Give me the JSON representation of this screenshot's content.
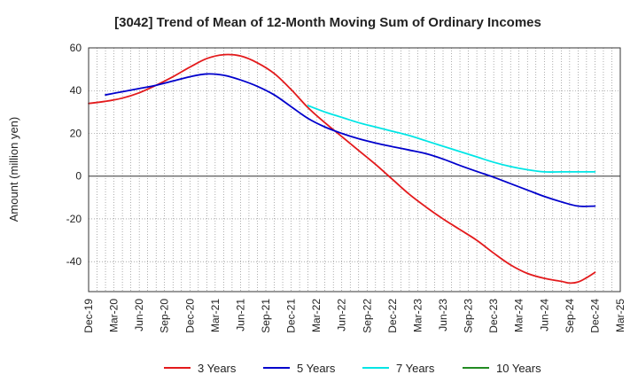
{
  "chart_data": {
    "type": "line",
    "title": "[3042]  Trend of Mean of 12-Month Moving Sum of Ordinary Incomes",
    "xlabel": "",
    "ylabel": "Amount (million yen)",
    "ylim": [
      -54,
      60
    ],
    "yticks": [
      60,
      40,
      20,
      0,
      -20,
      -40
    ],
    "grid": true,
    "legend_position": "bottom",
    "x_tick_labels": [
      "Dec-19",
      "Mar-20",
      "Jun-20",
      "Sep-20",
      "Dec-20",
      "Mar-21",
      "Jun-21",
      "Sep-21",
      "Dec-21",
      "Mar-22",
      "Jun-22",
      "Sep-22",
      "Dec-22",
      "Mar-23",
      "Jun-23",
      "Sep-23",
      "Dec-23",
      "Mar-24",
      "Jun-24",
      "Sep-24",
      "Dec-24",
      "Mar-25"
    ],
    "x_range_months": [
      0,
      63
    ],
    "series": [
      {
        "name": "3 Years",
        "color": "#e31a1c",
        "x": [
          0,
          2,
          4,
          6,
          8,
          10,
          12,
          14,
          16,
          18,
          20,
          22,
          24,
          26,
          28,
          30,
          32,
          34,
          36,
          38,
          40,
          42,
          44,
          46,
          48,
          50,
          52,
          54,
          56,
          57,
          58,
          59,
          60
        ],
        "values": [
          34,
          35,
          36.5,
          39,
          42.5,
          46.5,
          51,
          55,
          56.8,
          56.2,
          53,
          48,
          40.5,
          32,
          25,
          18.5,
          12,
          5.5,
          -1.5,
          -8.5,
          -14.5,
          -20,
          -25,
          -30,
          -36,
          -41.5,
          -45.5,
          -47.8,
          -49.2,
          -50,
          -49.5,
          -47.5,
          -45
        ]
      },
      {
        "name": "5 Years",
        "color": "#0000cc",
        "x": [
          2,
          4,
          6,
          8,
          10,
          12,
          14,
          16,
          18,
          20,
          22,
          24,
          26,
          28,
          30,
          32,
          34,
          36,
          38,
          40,
          42,
          44,
          46,
          48,
          50,
          52,
          54,
          56,
          58,
          60
        ],
        "values": [
          38,
          39.5,
          41,
          42.5,
          44.5,
          46.5,
          47.8,
          47.2,
          45,
          42,
          38,
          32.5,
          27,
          23,
          20,
          17.5,
          15.5,
          13.8,
          12.2,
          10.5,
          8,
          5,
          2.2,
          -0.5,
          -3.5,
          -6.5,
          -9.5,
          -12,
          -14,
          -14
        ]
      },
      {
        "name": "7 Years",
        "color": "#00e5e5",
        "x": [
          26,
          28,
          30,
          32,
          34,
          36,
          38,
          40,
          42,
          44,
          46,
          48,
          50,
          52,
          54,
          56,
          58,
          60
        ],
        "values": [
          33,
          30,
          27.5,
          25,
          23,
          21,
          19,
          16.5,
          14,
          11.5,
          9,
          6.5,
          4.5,
          3,
          2,
          2,
          2,
          2
        ]
      },
      {
        "name": "10 Years",
        "color": "#228b22",
        "x": [],
        "values": []
      }
    ]
  }
}
